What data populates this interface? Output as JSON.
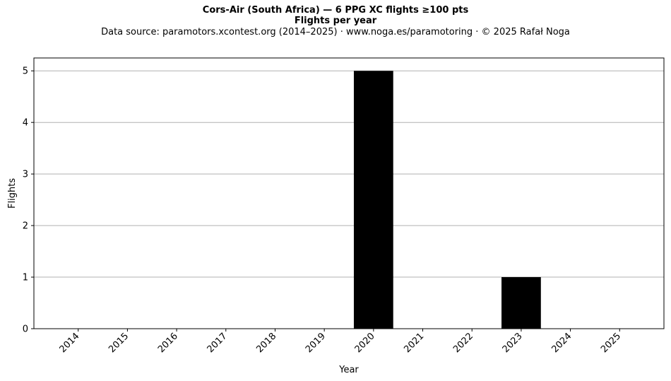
{
  "header": {
    "title": "Cors-Air (South Africa)  —  6 PPG XC flights ≥100 pts",
    "subtitle": "Flights per year",
    "source": "Data source: paramotors.xcontest.org (2014–2025)  ·  www.noga.es/paramotoring  ·  © 2025 Rafał Noga"
  },
  "chart_data": {
    "type": "bar",
    "title": "Cors-Air (South Africa)  —  6 PPG XC flights ≥100 pts",
    "subtitle": "Flights per year",
    "xlabel": "Year",
    "ylabel": "Flights",
    "categories": [
      "2014",
      "2015",
      "2016",
      "2017",
      "2018",
      "2019",
      "2020",
      "2021",
      "2022",
      "2023",
      "2024",
      "2025"
    ],
    "values": [
      0,
      0,
      0,
      0,
      0,
      0,
      5,
      0,
      0,
      1,
      0,
      0
    ],
    "ylim": [
      0,
      5.25
    ],
    "yticks": [
      0,
      1,
      2,
      3,
      4,
      5
    ],
    "grid": "horizontal",
    "bar_color": "#000000",
    "grid_color": "#b0b0b0"
  }
}
